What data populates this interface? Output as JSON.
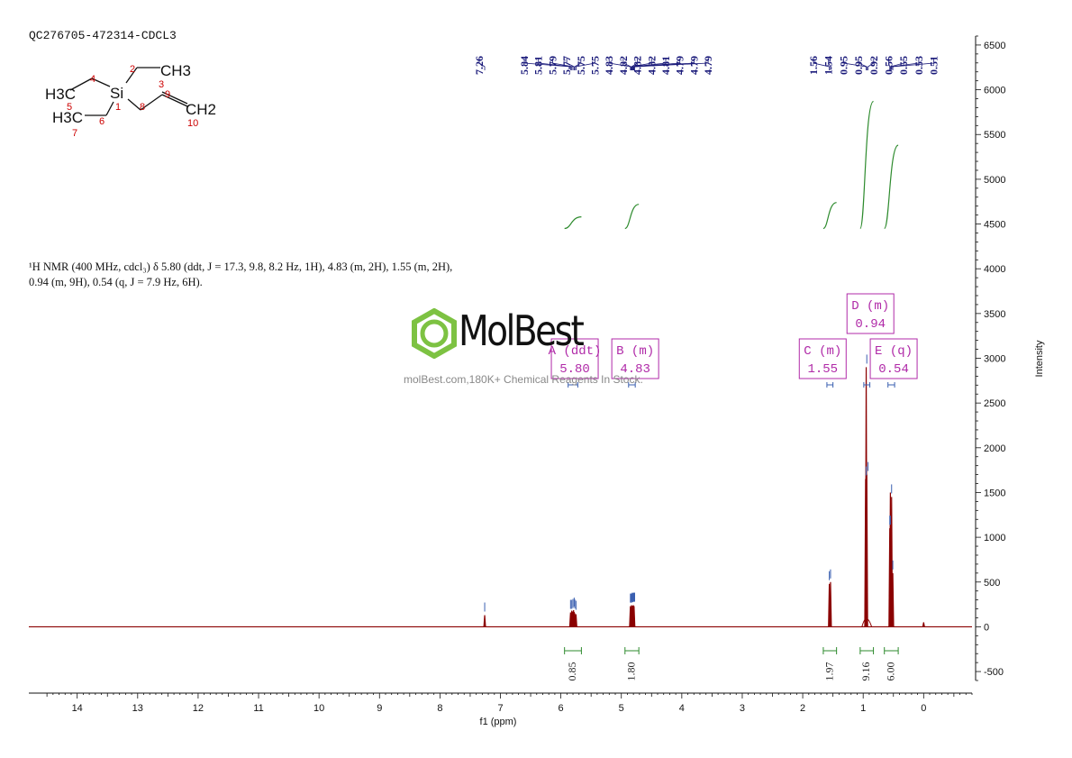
{
  "sample_id": "QC276705-472314-CDCL3",
  "nmr_description": {
    "line1": "¹H NMR (400 MHz, cdcl₃) δ 5.80 (ddt, J = 17.3, 9.8, 8.2 Hz, 1H), 4.83 (m, 2H), 1.55 (m, 2H),",
    "line2": "0.94 (m, 9H), 0.54 (q, J = 7.9 Hz, 6H)."
  },
  "watermark": {
    "brand": "MolBest",
    "tagline": "molBest.com,180K+ Chemical Reagents In Stock.",
    "logo_color": "#7dc242"
  },
  "molecule": {
    "labels": [
      "H3C",
      "CH3",
      "Si",
      "H3C",
      "CH2"
    ],
    "numbers": [
      "1",
      "2",
      "3",
      "4",
      "5",
      "6",
      "7",
      "8",
      "9",
      "10"
    ]
  },
  "colors": {
    "spectrum": "#8b0000",
    "peak_labels": "#1a1a7a",
    "integral": "#2e8b2e",
    "multiplet_box": "#b02aa8",
    "axis": "#111111"
  },
  "chart_data": {
    "type": "line",
    "title": "",
    "xlabel": "f1 (ppm)",
    "ylabel": "Intensity",
    "xlim": [
      14.8,
      -0.8
    ],
    "ylim": [
      -600,
      6600
    ],
    "x_ticks": [
      14,
      13,
      12,
      11,
      10,
      9,
      8,
      7,
      6,
      5,
      4,
      3,
      2,
      1,
      0
    ],
    "y_ticks": [
      -500,
      0,
      500,
      1000,
      1500,
      2000,
      2500,
      3000,
      3500,
      4000,
      4500,
      5000,
      5500,
      6000,
      6500
    ],
    "peaks": [
      {
        "ppm": 7.26,
        "height": 130
      },
      {
        "ppm": 5.84,
        "height": 160
      },
      {
        "ppm": 5.82,
        "height": 180
      },
      {
        "ppm": 5.81,
        "height": 170
      },
      {
        "ppm": 5.79,
        "height": 185
      },
      {
        "ppm": 5.78,
        "height": 165
      },
      {
        "ppm": 5.77,
        "height": 150
      },
      {
        "ppm": 5.75,
        "height": 140
      },
      {
        "ppm": 4.85,
        "height": 230
      },
      {
        "ppm": 4.83,
        "height": 240
      },
      {
        "ppm": 4.82,
        "height": 235
      },
      {
        "ppm": 4.8,
        "height": 240
      },
      {
        "ppm": 4.79,
        "height": 230
      },
      {
        "ppm": 1.56,
        "height": 480
      },
      {
        "ppm": 1.54,
        "height": 500
      },
      {
        "ppm": 0.96,
        "height": 1650
      },
      {
        "ppm": 0.95,
        "height": 2900
      },
      {
        "ppm": 0.94,
        "height": 1700
      },
      {
        "ppm": 0.56,
        "height": 1100
      },
      {
        "ppm": 0.55,
        "height": 1500
      },
      {
        "ppm": 0.53,
        "height": 1450
      },
      {
        "ppm": 0.51,
        "height": 600
      },
      {
        "ppm": 0.0,
        "height": 50
      }
    ],
    "peak_labels": {
      "group1": [
        "7.26"
      ],
      "group2": [
        "5.84",
        "5.81",
        "5.79",
        "5.77",
        "5.75",
        "5.75",
        "4.83",
        "4.82",
        "4.82",
        "4.82",
        "4.81",
        "4.79",
        "4.79",
        "4.79"
      ],
      "group3": [
        "1.56",
        "1.54",
        "0.95",
        "0.95",
        "0.92",
        "0.56",
        "0.55",
        "0.53",
        "0.51"
      ]
    },
    "peak_label_ppm": {
      "group1": [
        7.26
      ],
      "group2": [
        5.84,
        5.82,
        5.8,
        5.78,
        5.77,
        5.75,
        4.85,
        4.84,
        4.83,
        4.82,
        4.81,
        4.8,
        4.79,
        4.78
      ],
      "group3": [
        1.56,
        1.54,
        0.95,
        0.94,
        0.92,
        0.56,
        0.55,
        0.53,
        0.51
      ]
    },
    "multiplets": [
      {
        "id": "A",
        "type": "ddt",
        "label": "A (ddt)",
        "shift": "5.80",
        "ppm": 5.8,
        "range": [
          5.88,
          5.72
        ]
      },
      {
        "id": "B",
        "type": "m",
        "label": "B (m)",
        "shift": "4.83",
        "ppm": 4.83,
        "range": [
          4.88,
          4.77
        ]
      },
      {
        "id": "C",
        "type": "m",
        "label": "C (m)",
        "shift": "1.55",
        "ppm": 1.55,
        "range": [
          1.6,
          1.5
        ]
      },
      {
        "id": "D",
        "type": "m",
        "label": "D (m)",
        "shift": "0.94",
        "ppm": 0.94,
        "range": [
          0.99,
          0.89
        ]
      },
      {
        "id": "E",
        "type": "q",
        "label": "E (q)",
        "shift": "0.54",
        "ppm": 0.54,
        "range": [
          0.59,
          0.48
        ]
      }
    ],
    "integrals": [
      {
        "value": "0.85",
        "range": [
          5.88,
          5.72
        ],
        "level_start": 4450,
        "level_end": 4580
      },
      {
        "value": "1.80",
        "range": [
          4.88,
          4.77
        ],
        "level_start": 4450,
        "level_end": 4720
      },
      {
        "value": "1.97",
        "range": [
          1.6,
          1.5
        ],
        "level_start": 4450,
        "level_end": 4740
      },
      {
        "value": "9.16",
        "range": [
          0.99,
          0.89
        ],
        "level_start": 4450,
        "level_end": 5870
      },
      {
        "value": "6.00",
        "range": [
          0.59,
          0.48
        ],
        "level_start": 4450,
        "level_end": 5380
      }
    ]
  }
}
